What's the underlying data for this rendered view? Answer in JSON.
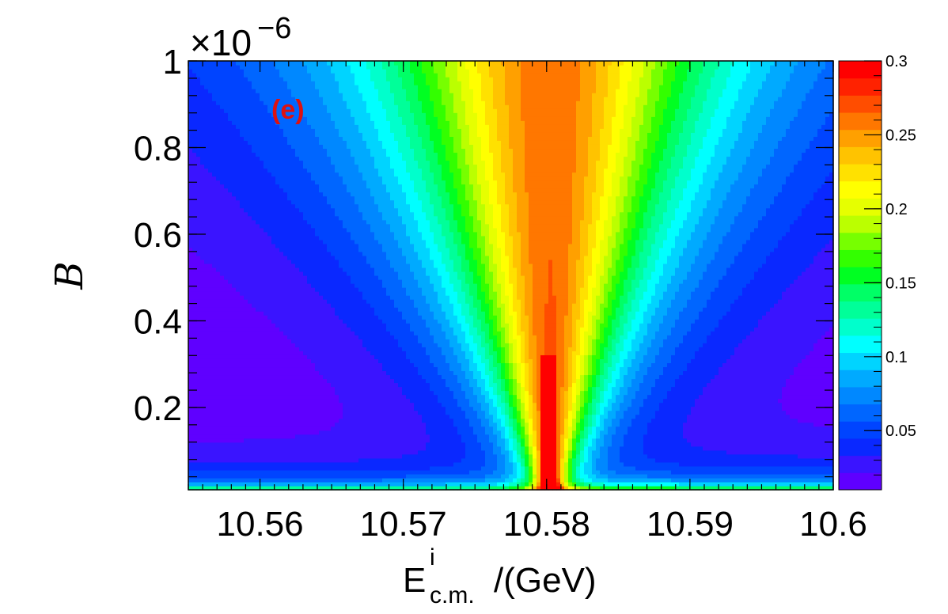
{
  "chart_data": {
    "type": "heatmap",
    "panel_label": "(e)",
    "xlabel": {
      "base": "E",
      "sup": "i",
      "sub": "c.m.",
      "suffix": "/(GeV)"
    },
    "ylabel": "B",
    "y_multiplier": "×10",
    "y_multiplier_exp": "−6",
    "xlim": [
      10.555,
      10.6
    ],
    "ylim": [
      0.01,
      1.0
    ],
    "zlim": [
      0.01,
      0.3
    ],
    "x_ticks": [
      "10.56",
      "10.57",
      "10.58",
      "10.59",
      "10.6"
    ],
    "y_ticks": [
      "0.2",
      "0.4",
      "0.6",
      "0.8",
      "1"
    ],
    "z_ticks": [
      "0.05",
      "0.1",
      "0.15",
      "0.2",
      "0.25",
      "0.3"
    ],
    "palette": [
      "#5f00ff",
      "#3a14ff",
      "#0a28ff",
      "#0044ff",
      "#0066ff",
      "#0088ff",
      "#00aaff",
      "#00d4ff",
      "#00ffff",
      "#00ffcc",
      "#00ff99",
      "#00ff66",
      "#00ff22",
      "#33ff00",
      "#77ff00",
      "#bbff00",
      "#e6ff00",
      "#ffff00",
      "#ffe100",
      "#ffc300",
      "#ffa000",
      "#ff7700",
      "#ff4d00",
      "#ff2200",
      "#ff0000"
    ],
    "peak_center": 10.5802,
    "annotation_color": "#dd1111",
    "grid": false
  }
}
